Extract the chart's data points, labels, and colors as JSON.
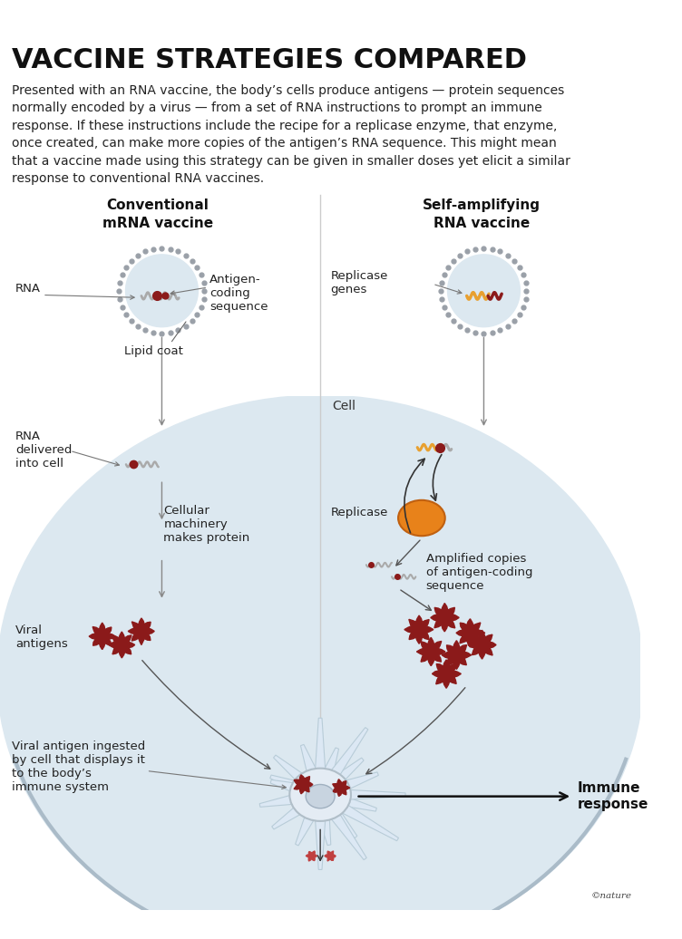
{
  "title": "VACCINE STRATEGIES COMPARED",
  "subtitle": "Presented with an RNA vaccine, the body’s cells produce antigens — protein sequences\nnormally encoded by a virus — from a set of RNA instructions to prompt an immune\nresponse. If these instructions include the recipe for a replicase enzyme, that enzyme,\nonce created, can make more copies of the antigen’s RNA sequence. This might mean\nthat a vaccine made using this strategy can be given in smaller doses yet elicit a similar\nresponse to conventional RNA vaccines.",
  "left_title": "Conventional\nmRNA vaccine",
  "right_title": "Self-amplifying\nRNA vaccine",
  "bg_color": "#ffffff",
  "cell_bg": "#dce8f0",
  "cell_border": "#b0bec5",
  "lipid_border_color": "#9aa0a8",
  "rna_color": "#aaaaaa",
  "antigen_color": "#8b1a1a",
  "replicase_orange": "#e8821a",
  "antigen_orange": "#e8a030",
  "arrow_color": "#555555",
  "label_fontsize": 9.5,
  "title_fontsize": 22,
  "subtitle_fontsize": 10,
  "section_title_fontsize": 11,
  "immune_response_text": "Immune\nresponse",
  "annotations": {
    "rna_label": "RNA",
    "antigen_coding": "Antigen-\ncoding\nsequence",
    "lipid_coat": "Lipid coat",
    "replicase_genes": "Replicase\ngenes",
    "rna_delivered": "RNA\ndelivered\ninto cell",
    "cellular_machinery": "Cellular\nmachinery\nmakes protein",
    "viral_antigens": "Viral\nantigens",
    "replicase_label": "Replicase",
    "amplified_copies": "Amplified copies\nof antigen-coding\nsequence",
    "cell_label": "Cell",
    "viral_antigen_ingested": "Viral antigen ingested\nby cell that displays it\nto the body’s\nimmune system"
  }
}
